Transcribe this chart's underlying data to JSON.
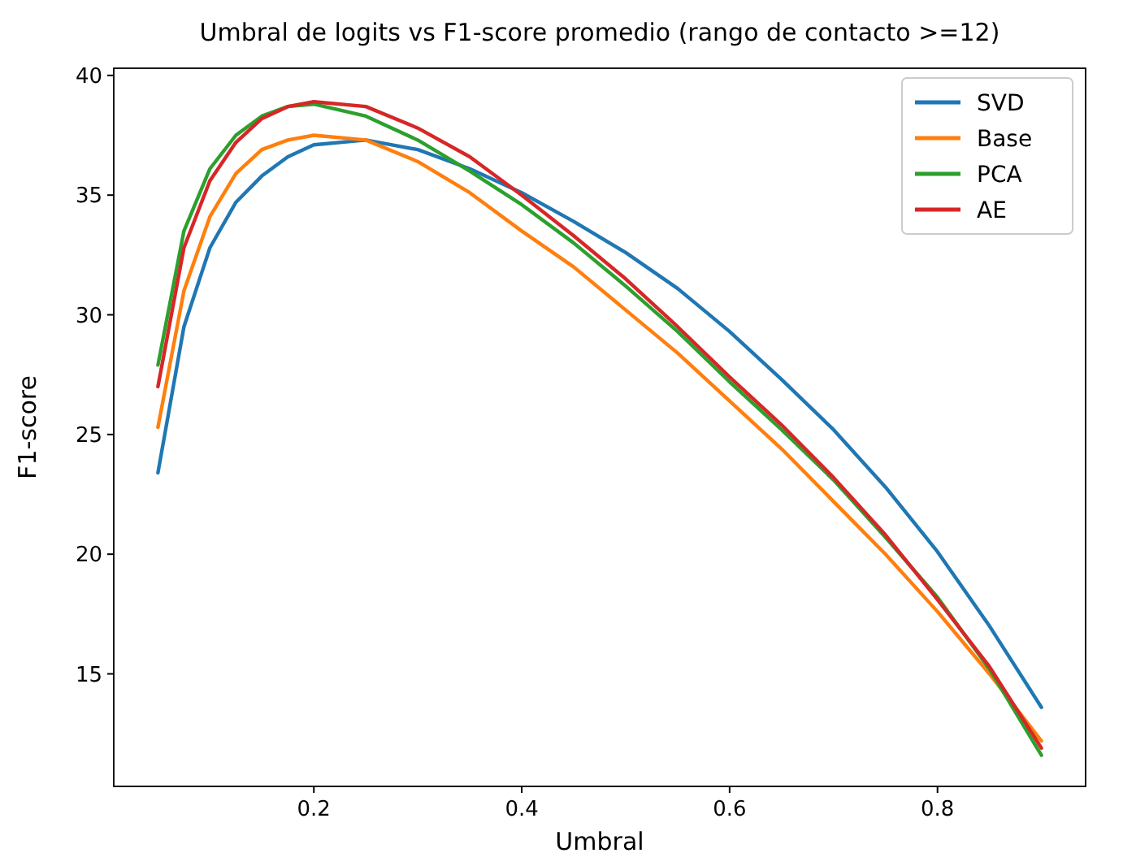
{
  "chart_data": {
    "type": "line",
    "title": "Umbral de logits vs F1-score promedio (rango de contacto >=12)",
    "xlabel": "Umbral",
    "ylabel": "F1-score",
    "x": [
      0.05,
      0.075,
      0.1,
      0.125,
      0.15,
      0.175,
      0.2,
      0.25,
      0.3,
      0.35,
      0.4,
      0.45,
      0.5,
      0.55,
      0.6,
      0.65,
      0.7,
      0.75,
      0.8,
      0.85,
      0.9
    ],
    "series": [
      {
        "name": "SVD",
        "color": "#1f77b4",
        "values": [
          23.4,
          29.5,
          32.8,
          34.7,
          35.8,
          36.6,
          37.1,
          37.3,
          36.9,
          36.1,
          35.1,
          33.9,
          32.6,
          31.1,
          29.3,
          27.3,
          25.2,
          22.8,
          20.1,
          17.0,
          13.6
        ]
      },
      {
        "name": "Base",
        "color": "#ff7f0e",
        "values": [
          25.3,
          31.0,
          34.1,
          35.9,
          36.9,
          37.3,
          37.5,
          37.3,
          36.4,
          35.1,
          33.5,
          32.0,
          30.2,
          28.4,
          26.4,
          24.4,
          22.2,
          20.0,
          17.6,
          15.0,
          12.2
        ]
      },
      {
        "name": "PCA",
        "color": "#2ca02c",
        "values": [
          27.9,
          33.5,
          36.1,
          37.5,
          38.3,
          38.7,
          38.8,
          38.3,
          37.3,
          36.0,
          34.6,
          33.0,
          31.2,
          29.3,
          27.2,
          25.2,
          23.1,
          20.7,
          18.2,
          15.2,
          11.6
        ]
      },
      {
        "name": "AE",
        "color": "#d62728",
        "values": [
          27.0,
          32.8,
          35.6,
          37.2,
          38.2,
          38.7,
          38.9,
          38.7,
          37.8,
          36.6,
          35.0,
          33.3,
          31.5,
          29.5,
          27.4,
          25.4,
          23.2,
          20.8,
          18.1,
          15.3,
          11.9
        ]
      }
    ],
    "xlim": [
      0.0075,
      0.9425
    ],
    "ylim": [
      10.3,
      40.3
    ],
    "xticks": [
      0.2,
      0.4,
      0.6,
      0.8
    ],
    "yticks": [
      15,
      20,
      25,
      30,
      35,
      40
    ],
    "legend": "top right",
    "grid": false,
    "line_style": "solid",
    "marker": "none"
  }
}
